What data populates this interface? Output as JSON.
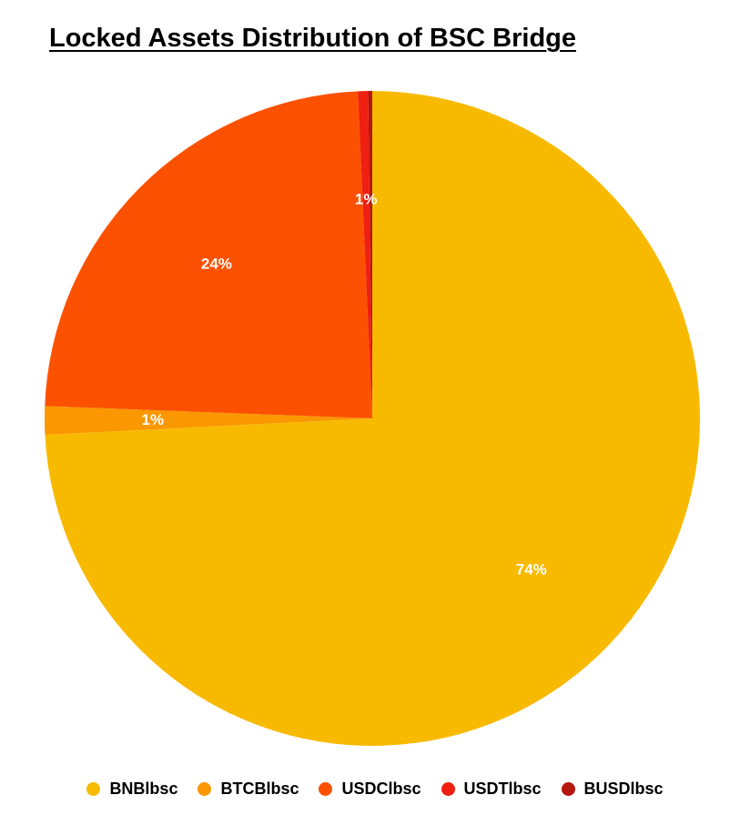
{
  "chart_data": {
    "type": "pie",
    "title": "Locked Assets Distribution of BSC Bridge",
    "categories": [
      "BNBlbsc",
      "BTCBlbsc",
      "USDClbsc",
      "USDTlbsc",
      "BUSDlbsc"
    ],
    "values": [
      74.2,
      1.4,
      23.7,
      0.5,
      0.2
    ],
    "data_labels": [
      "74%",
      "1%",
      "24%",
      "1%",
      ""
    ],
    "colors": [
      "#F8BA00",
      "#FB9700",
      "#FC5100",
      "#EF1F12",
      "#B5170E"
    ],
    "legend_position": "bottom"
  }
}
